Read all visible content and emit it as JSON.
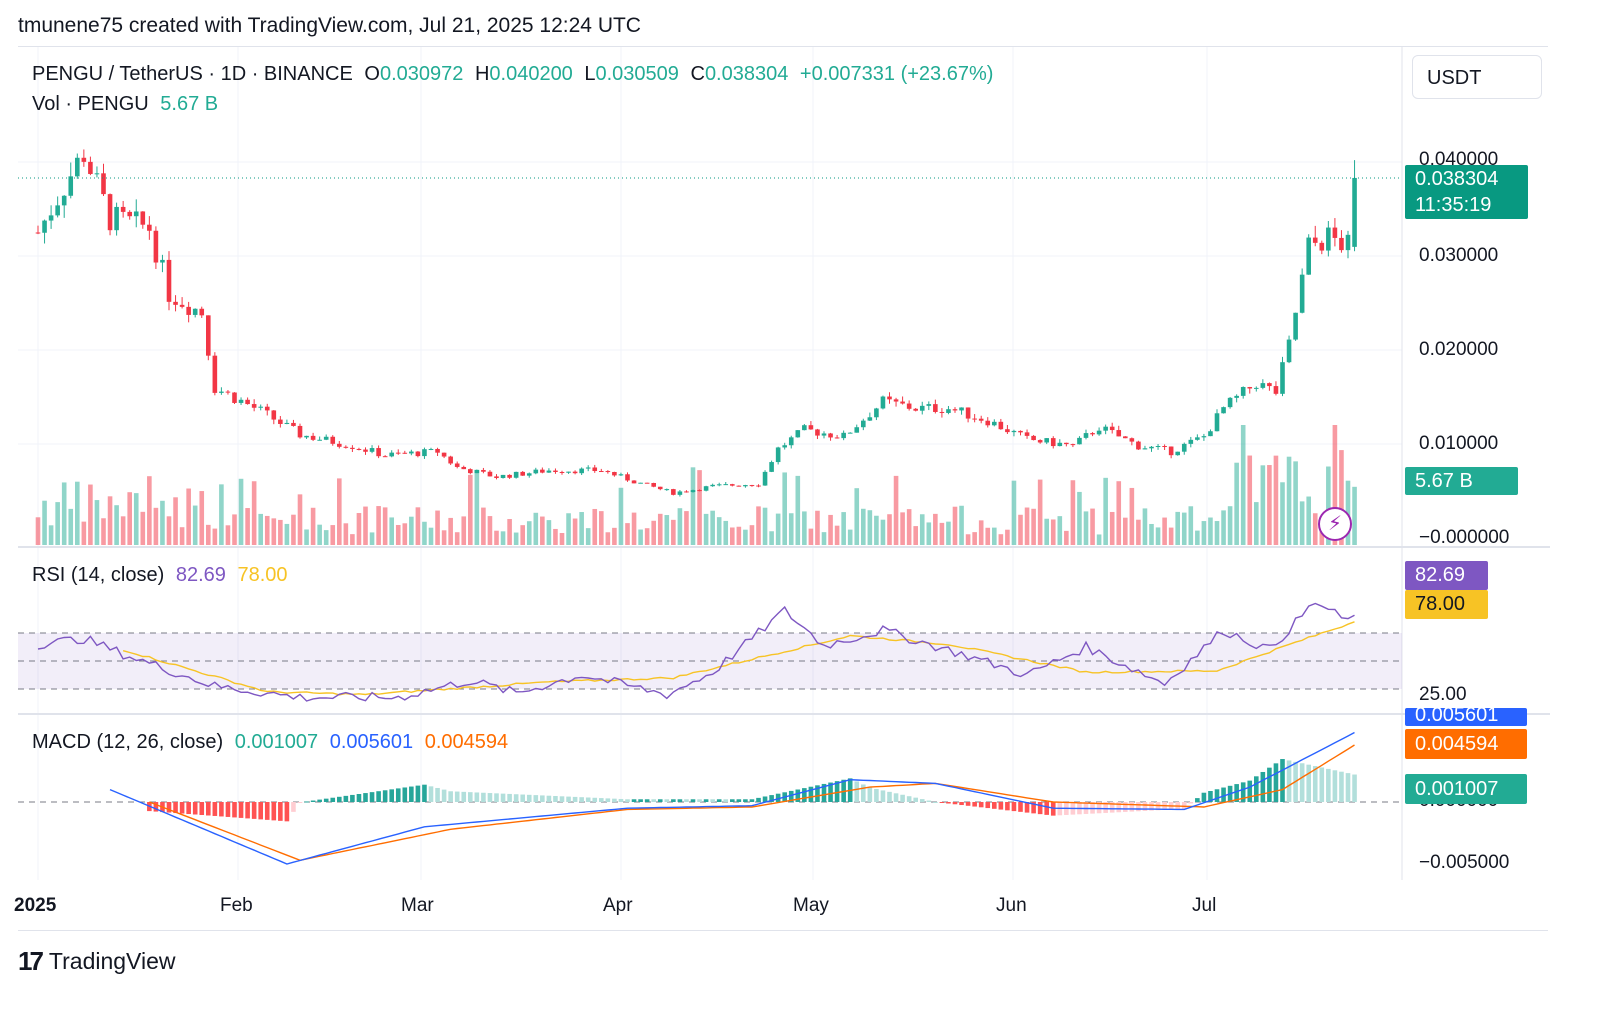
{
  "header": {
    "creator": "tmunene75 created with TradingView.com, Jul 21, 2025 12:24 UTC"
  },
  "legend": {
    "symbol": "PENGU / TetherUS · 1D · BINANCE",
    "o_label": "O",
    "o_value": "0.030972",
    "h_label": "H",
    "h_value": "0.040200",
    "l_label": "L",
    "l_value": "0.030509",
    "c_label": "C",
    "c_value": "0.038304",
    "change": "+0.007331 (+23.67%)",
    "vol_label": "Vol · PENGU",
    "vol_value": "5.67 B"
  },
  "currency_button": "USDT",
  "colors": {
    "up": "#22ab94",
    "down": "#f23645",
    "rsi": "#7e57c2",
    "rsi_ma": "#f7c325",
    "macd": "#2962ff",
    "signal": "#ff6d00",
    "accent": "#089981"
  },
  "tags": {
    "last_price": "0.038304",
    "countdown": "11:35:19",
    "volume": "5.67 B",
    "rsi": "82.69",
    "rsi_ma": "78.00",
    "macd": "0.005601",
    "signal": "0.004594",
    "hist": "0.001007"
  },
  "rsi_legend": {
    "label": "RSI (14, close)",
    "value": "82.69",
    "ma": "78.00"
  },
  "macd_legend": {
    "label": "MACD (12, 26, close)",
    "hist": "0.001007",
    "macd": "0.005601",
    "signal": "0.004594"
  },
  "footer": {
    "brand": "TradingView"
  },
  "chart_data": [
    {
      "type": "candlestick",
      "title": "PENGU / TetherUS · 1D · BINANCE",
      "y_ticks": [
        "0.040000",
        "0.030000",
        "0.020000",
        "0.010000",
        "−0.000000"
      ],
      "ylim": [
        0,
        0.04
      ],
      "x_ticks": [
        "2025",
        "Feb",
        "Mar",
        "Apr",
        "May",
        "Jun",
        "Jul"
      ],
      "anchors": [
        {
          "date": "Jan 1",
          "close": 0.0325
        },
        {
          "date": "Jan 5",
          "close": 0.0375
        },
        {
          "date": "Jan 8",
          "close": 0.041
        },
        {
          "date": "Jan 12",
          "close": 0.034
        },
        {
          "date": "Jan 18",
          "close": 0.033
        },
        {
          "date": "Jan 21",
          "close": 0.026
        },
        {
          "date": "Jan 26",
          "close": 0.024
        },
        {
          "date": "Jan 28",
          "close": 0.016
        },
        {
          "date": "Feb 4",
          "close": 0.0135
        },
        {
          "date": "Feb 10",
          "close": 0.011
        },
        {
          "date": "Feb 18",
          "close": 0.0098
        },
        {
          "date": "Feb 23",
          "close": 0.0088
        },
        {
          "date": "Mar 3",
          "close": 0.0092
        },
        {
          "date": "Mar 6",
          "close": 0.0075
        },
        {
          "date": "Mar 12",
          "close": 0.0065
        },
        {
          "date": "Mar 20",
          "close": 0.0072
        },
        {
          "date": "Mar 28",
          "close": 0.0072
        },
        {
          "date": "Apr 3",
          "close": 0.0058
        },
        {
          "date": "Apr 8",
          "close": 0.0048
        },
        {
          "date": "Apr 14",
          "close": 0.0055
        },
        {
          "date": "Apr 21",
          "close": 0.0058
        },
        {
          "date": "Apr 24",
          "close": 0.0095
        },
        {
          "date": "Apr 28",
          "close": 0.0115
        },
        {
          "date": "May 4",
          "close": 0.0108
        },
        {
          "date": "May 10",
          "close": 0.0145
        },
        {
          "date": "May 15",
          "close": 0.0138
        },
        {
          "date": "May 20",
          "close": 0.0138
        },
        {
          "date": "May 26",
          "close": 0.0125
        },
        {
          "date": "Jun 1",
          "close": 0.0105
        },
        {
          "date": "Jun 8",
          "close": 0.0098
        },
        {
          "date": "Jun 12",
          "close": 0.0118
        },
        {
          "date": "Jun 18",
          "close": 0.0098
        },
        {
          "date": "Jun 23",
          "close": 0.0092
        },
        {
          "date": "Jun 28",
          "close": 0.0108
        },
        {
          "date": "Jul 1",
          "close": 0.0138
        },
        {
          "date": "Jul 6",
          "close": 0.0165
        },
        {
          "date": "Jul 9",
          "close": 0.0155
        },
        {
          "date": "Jul 11",
          "close": 0.0205
        },
        {
          "date": "Jul 14",
          "close": 0.031
        },
        {
          "date": "Jul 17",
          "close": 0.032
        },
        {
          "date": "Jul 20",
          "close": 0.031
        },
        {
          "date": "Jul 21",
          "close": 0.038304
        }
      ],
      "last_candle": {
        "date": "Jul 21",
        "open": 0.030972,
        "high": 0.0402,
        "low": 0.030509,
        "close": 0.038304
      },
      "volume_last": "5.67 B"
    },
    {
      "type": "line",
      "title": "RSI (14, close)",
      "y_ticks": [
        "25.00"
      ],
      "bands": [
        30,
        50,
        70
      ],
      "series": [
        {
          "name": "RSI",
          "last": 82.69,
          "anchors": [
            {
              "date": "Jan 1",
              "value": 62
            },
            {
              "date": "Jan 8",
              "value": 66
            },
            {
              "date": "Jan 14",
              "value": 55
            },
            {
              "date": "Jan 28",
              "value": 32
            },
            {
              "date": "Feb 10",
              "value": 24
            },
            {
              "date": "Feb 25",
              "value": 24
            },
            {
              "date": "Mar 8",
              "value": 36
            },
            {
              "date": "Mar 15",
              "value": 27
            },
            {
              "date": "Mar 25",
              "value": 40
            },
            {
              "date": "Apr 7",
              "value": 26
            },
            {
              "date": "Apr 14",
              "value": 42
            },
            {
              "date": "Apr 25",
              "value": 86
            },
            {
              "date": "May 1",
              "value": 61
            },
            {
              "date": "May 10",
              "value": 72
            },
            {
              "date": "May 22",
              "value": 55
            },
            {
              "date": "Jun 1",
              "value": 40
            },
            {
              "date": "Jun 10",
              "value": 60
            },
            {
              "date": "Jun 22",
              "value": 34
            },
            {
              "date": "Jul 1",
              "value": 72
            },
            {
              "date": "Jul 8",
              "value": 58
            },
            {
              "date": "Jul 15",
              "value": 92
            },
            {
              "date": "Jul 20",
              "value": 78
            },
            {
              "date": "Jul 21",
              "value": 82.69
            }
          ]
        },
        {
          "name": "RSI MA",
          "last": 78.0,
          "anchors": [
            {
              "date": "Jan 14",
              "value": 58
            },
            {
              "date": "Feb 5",
              "value": 28
            },
            {
              "date": "Feb 20",
              "value": 26
            },
            {
              "date": "Mar 20",
              "value": 35
            },
            {
              "date": "Apr 8",
              "value": 38
            },
            {
              "date": "May 5",
              "value": 68
            },
            {
              "date": "May 20",
              "value": 62
            },
            {
              "date": "Jun 10",
              "value": 42
            },
            {
              "date": "Jun 30",
              "value": 43
            },
            {
              "date": "Jul 10",
              "value": 60
            },
            {
              "date": "Jul 21",
              "value": 78
            }
          ]
        }
      ]
    },
    {
      "type": "line",
      "title": "MACD (12, 26, close)",
      "y_ticks": [
        "0.000000",
        "−0.005000"
      ],
      "series": [
        {
          "name": "MACD",
          "last": 0.005601,
          "anchors": [
            {
              "date": "Jan 12",
              "value": 0.001
            },
            {
              "date": "Feb 8",
              "value": -0.005
            },
            {
              "date": "Mar 1",
              "value": -0.002
            },
            {
              "date": "Apr 1",
              "value": -0.0005
            },
            {
              "date": "Apr 20",
              "value": -0.0003
            },
            {
              "date": "May 5",
              "value": 0.0018
            },
            {
              "date": "May 18",
              "value": 0.0015
            },
            {
              "date": "Jun 5",
              "value": -0.0005
            },
            {
              "date": "Jun 25",
              "value": -0.0006
            },
            {
              "date": "Jul 5",
              "value": 0.0012
            },
            {
              "date": "Jul 21",
              "value": 0.005601
            }
          ]
        },
        {
          "name": "Signal",
          "last": 0.004594,
          "anchors": [
            {
              "date": "Jan 18",
              "value": 0.0
            },
            {
              "date": "Feb 10",
              "value": -0.0047
            },
            {
              "date": "Mar 5",
              "value": -0.0022
            },
            {
              "date": "Apr 1",
              "value": -0.0006
            },
            {
              "date": "Apr 20",
              "value": -0.0004
            },
            {
              "date": "May 8",
              "value": 0.0012
            },
            {
              "date": "May 18",
              "value": 0.0015
            },
            {
              "date": "Jun 5",
              "value": 0.0
            },
            {
              "date": "Jun 28",
              "value": -0.0004
            },
            {
              "date": "Jul 10",
              "value": 0.001
            },
            {
              "date": "Jul 21",
              "value": 0.004594
            }
          ]
        }
      ],
      "histogram_last": 0.001007
    }
  ]
}
